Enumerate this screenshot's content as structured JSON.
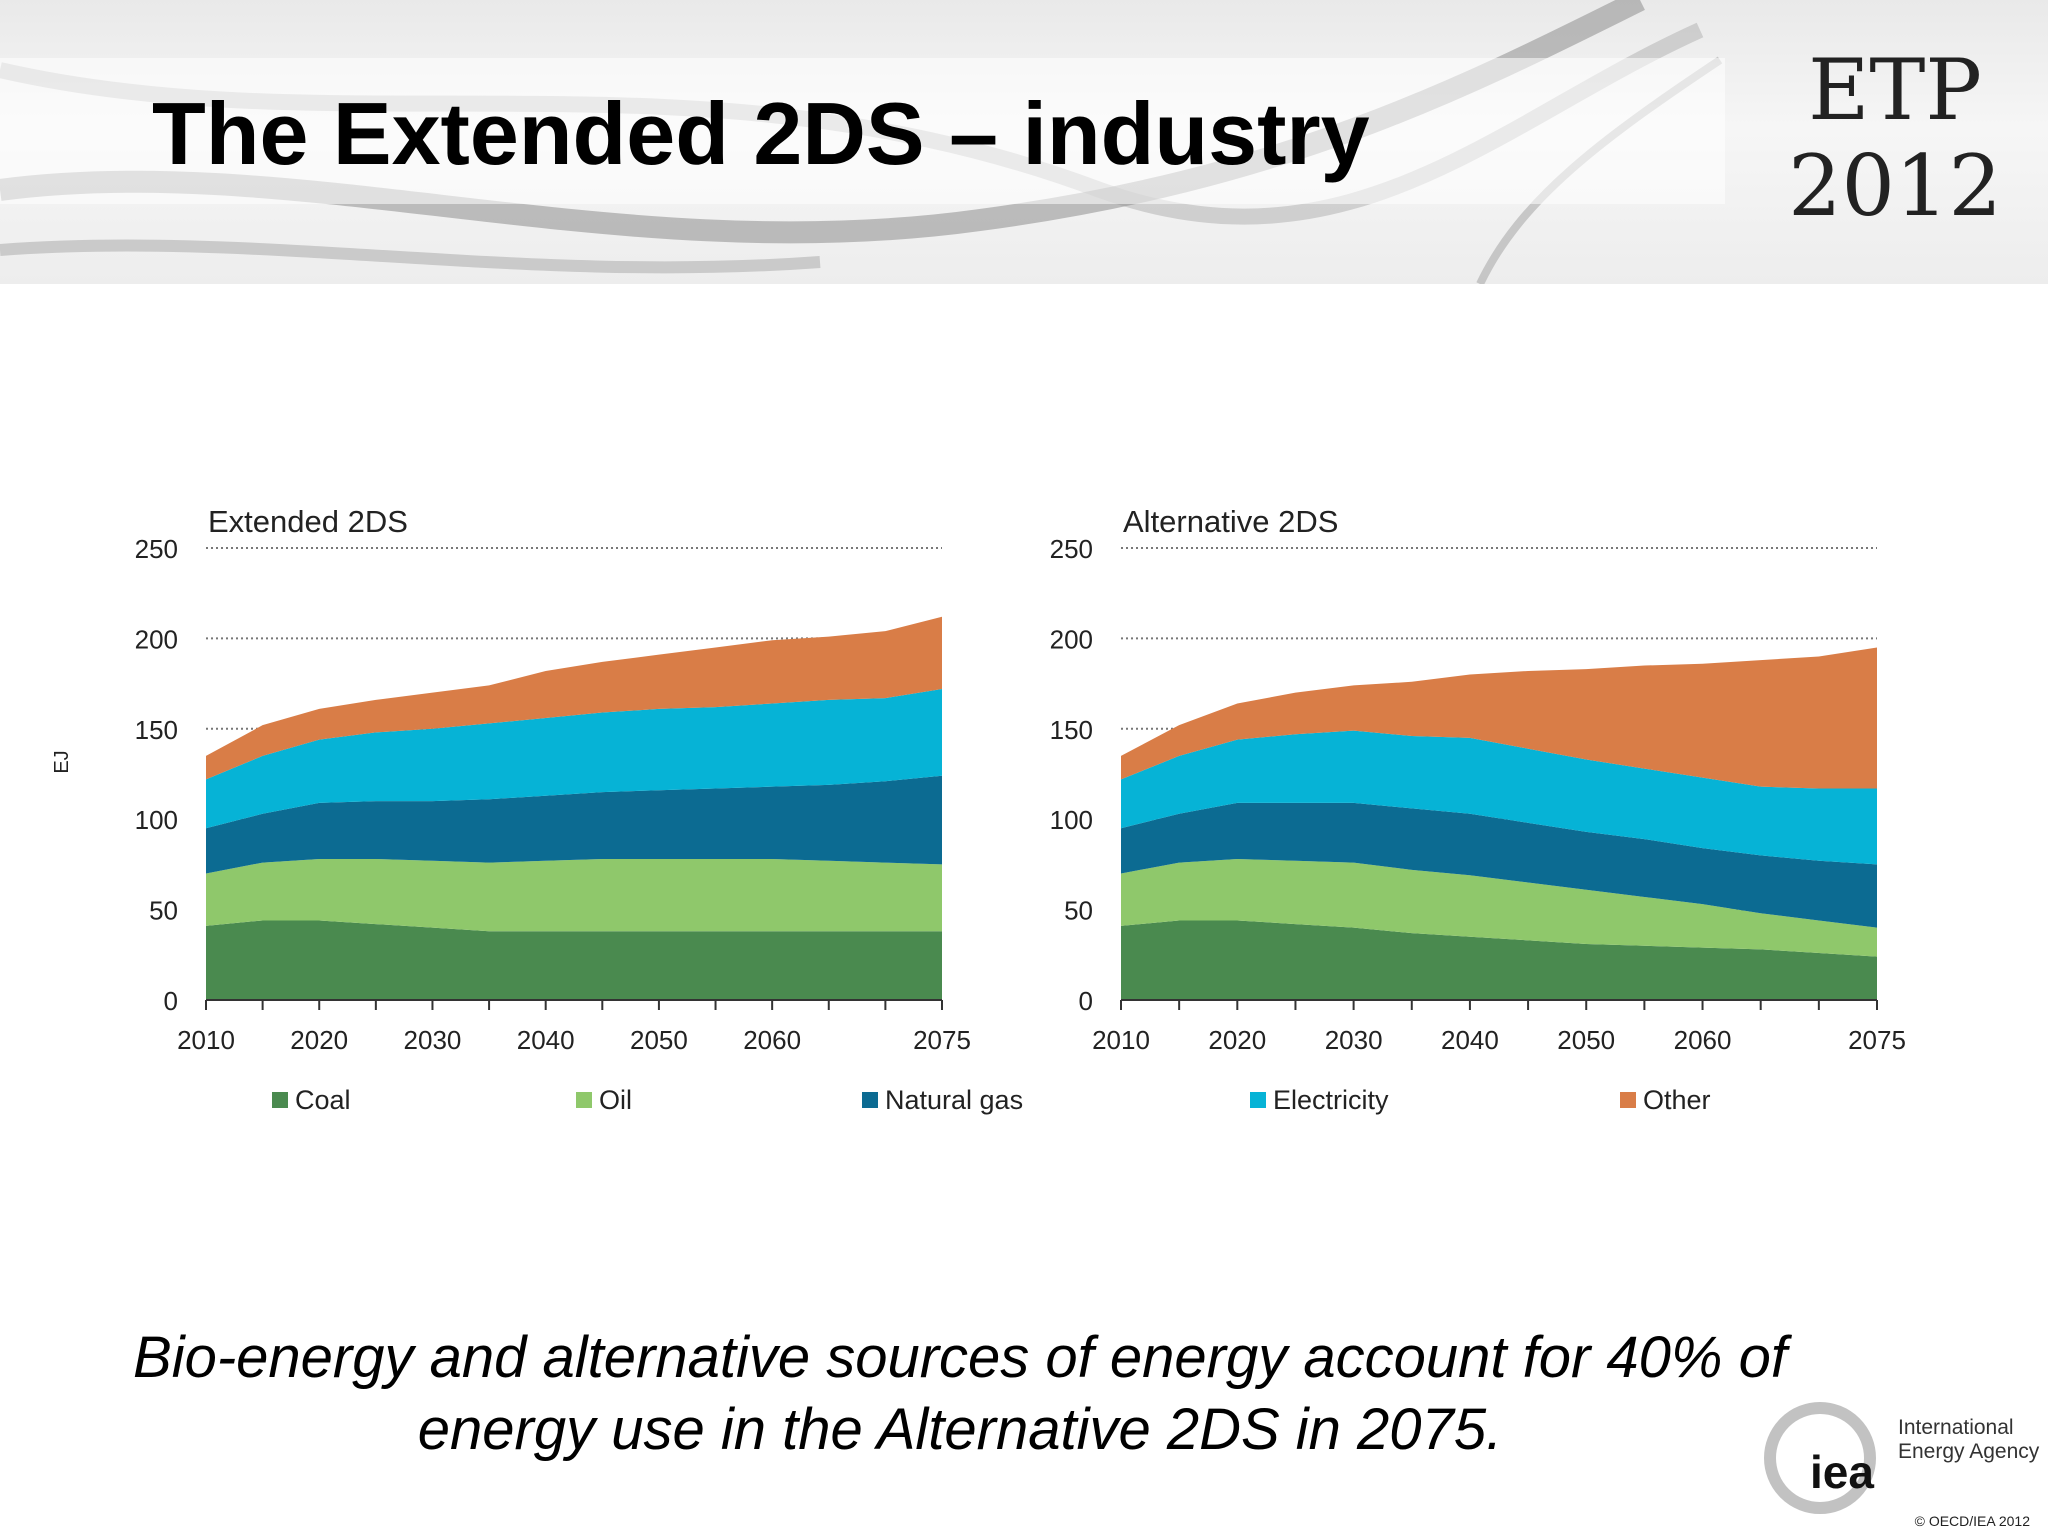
{
  "slide": {
    "title": "The Extended 2DS – industry",
    "logo": {
      "line1": "ETP",
      "line2": "2012"
    },
    "caption": "Bio-energy and alternative sources of energy account for 40% of energy use in the Alternative 2DS in 2075.",
    "iea": {
      "mark": "iea",
      "name_line1": "International",
      "name_line2": "Energy Agency"
    },
    "copyright": "© OECD/IEA 2012"
  },
  "colors": {
    "Coal": "#4a8a4f",
    "Oil": "#8fc86b",
    "Natural gas": "#0c6b92",
    "Electricity": "#06b3d6",
    "Other": "#d97d47"
  },
  "chart_data": [
    {
      "type": "area",
      "stacked": true,
      "title": "Extended 2DS",
      "ylabel": "EJ",
      "ylim": [
        0,
        250
      ],
      "yticks": [
        0,
        50,
        100,
        150,
        200,
        250
      ],
      "xlim": [
        2010,
        2075
      ],
      "xtick_labels": [
        "2010",
        "2020",
        "2030",
        "2040",
        "2050",
        "2060",
        "2075"
      ],
      "grid": "dotted horizontal",
      "x": [
        2010,
        2015,
        2020,
        2025,
        2030,
        2035,
        2040,
        2045,
        2050,
        2055,
        2060,
        2065,
        2070,
        2075
      ],
      "series": [
        {
          "name": "Coal",
          "values": [
            41,
            44,
            44,
            42,
            40,
            38,
            38,
            38,
            38,
            38,
            38,
            38,
            38,
            38
          ]
        },
        {
          "name": "Oil",
          "values": [
            29,
            32,
            34,
            36,
            37,
            38,
            39,
            40,
            40,
            40,
            40,
            39,
            38,
            37
          ]
        },
        {
          "name": "Natural gas",
          "values": [
            25,
            27,
            31,
            32,
            33,
            35,
            36,
            37,
            38,
            39,
            40,
            42,
            45,
            49
          ]
        },
        {
          "name": "Electricity",
          "values": [
            27,
            32,
            35,
            38,
            40,
            42,
            43,
            44,
            45,
            45,
            46,
            47,
            46,
            48
          ]
        },
        {
          "name": "Other",
          "values": [
            13,
            17,
            17,
            18,
            20,
            21,
            26,
            28,
            30,
            33,
            35,
            35,
            37,
            40
          ]
        }
      ]
    },
    {
      "type": "area",
      "stacked": true,
      "title": "Alternative 2DS",
      "ylabel": "EJ",
      "ylim": [
        0,
        250
      ],
      "yticks": [
        0,
        50,
        100,
        150,
        200,
        250
      ],
      "xlim": [
        2010,
        2075
      ],
      "xtick_labels": [
        "2010",
        "2020",
        "2030",
        "2040",
        "2050",
        "2060",
        "2075"
      ],
      "grid": "dotted horizontal",
      "x": [
        2010,
        2015,
        2020,
        2025,
        2030,
        2035,
        2040,
        2045,
        2050,
        2055,
        2060,
        2065,
        2070,
        2075
      ],
      "series": [
        {
          "name": "Coal",
          "values": [
            41,
            44,
            44,
            42,
            40,
            37,
            35,
            33,
            31,
            30,
            29,
            28,
            26,
            24
          ]
        },
        {
          "name": "Oil",
          "values": [
            29,
            32,
            34,
            35,
            36,
            35,
            34,
            32,
            30,
            27,
            24,
            20,
            18,
            16
          ]
        },
        {
          "name": "Natural gas",
          "values": [
            25,
            27,
            31,
            32,
            33,
            34,
            34,
            33,
            32,
            32,
            31,
            32,
            33,
            35
          ]
        },
        {
          "name": "Electricity",
          "values": [
            27,
            32,
            35,
            38,
            40,
            40,
            42,
            41,
            40,
            39,
            39,
            38,
            40,
            42
          ]
        },
        {
          "name": "Other",
          "values": [
            13,
            17,
            20,
            23,
            25,
            30,
            35,
            43,
            50,
            57,
            63,
            70,
            73,
            78
          ]
        }
      ]
    }
  ]
}
